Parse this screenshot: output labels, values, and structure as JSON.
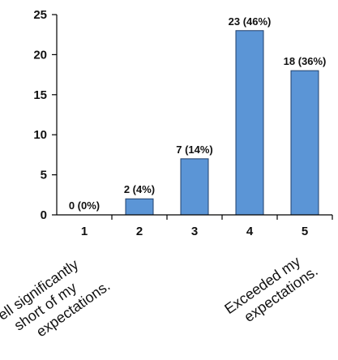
{
  "chart_data": {
    "type": "bar",
    "categories": [
      "1",
      "2",
      "3",
      "4",
      "5"
    ],
    "values": [
      0,
      2,
      7,
      23,
      18
    ],
    "data_labels": [
      "0 (0%)",
      "2 (4%)",
      "7 (14%)",
      "23 (46%)",
      "18 (36%)"
    ],
    "title": "",
    "xlabel": "",
    "ylabel": "",
    "ylim": [
      0,
      25
    ],
    "yticks": [
      "0",
      "5",
      "10",
      "15",
      "20",
      "25"
    ],
    "ytick_values": [
      0,
      5,
      10,
      15,
      20,
      25
    ],
    "grid": false,
    "bar_color": "#5b95d6",
    "bar_edge_color": "#1f3f6b",
    "scale_labels": {
      "low_line1": "Fell significantly",
      "low_line2": "short of my",
      "low_line3": "expectations.",
      "high_line1": "Exceeded my",
      "high_line2": "expectations."
    }
  }
}
